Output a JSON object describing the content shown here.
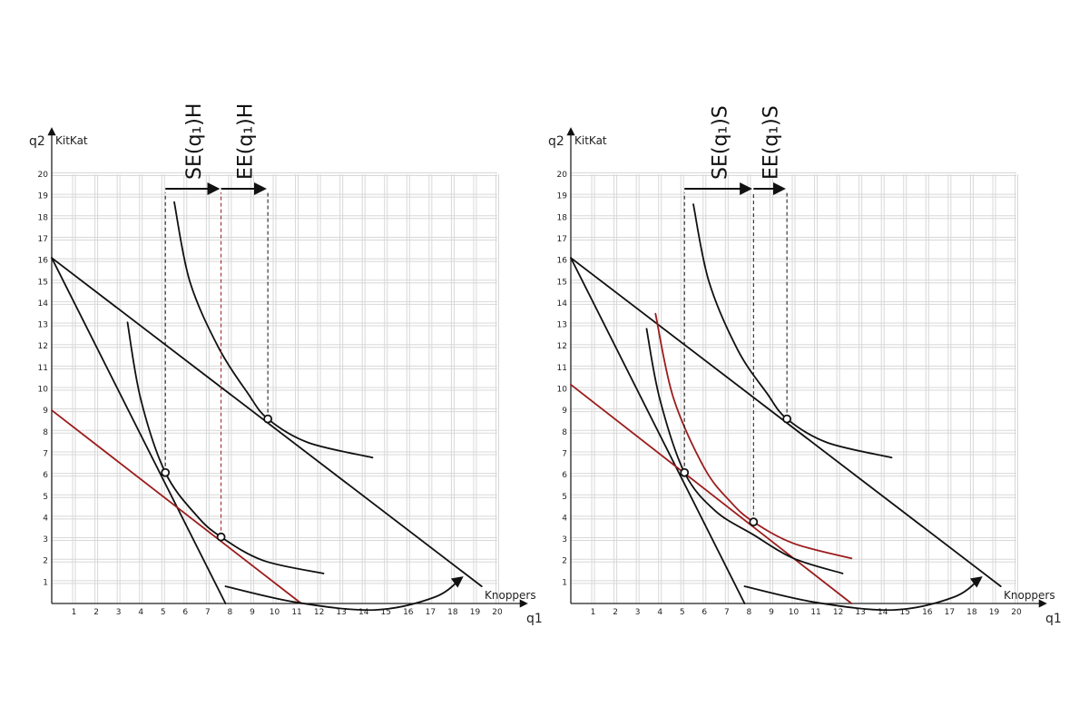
{
  "chart_data": [
    {
      "type": "line",
      "id": "left",
      "x_axis_symbol": "q1",
      "y_axis_symbol": "q2",
      "xlabel": "Knoppers",
      "ylabel": "KitKat",
      "xlim": [
        0,
        20
      ],
      "ylim": [
        0,
        20
      ],
      "x_ticks": [
        1,
        2,
        3,
        4,
        5,
        6,
        7,
        8,
        9,
        10,
        11,
        12,
        13,
        14,
        15,
        16,
        17,
        18,
        19,
        20
      ],
      "y_ticks": [
        1,
        2,
        3,
        4,
        5,
        6,
        7,
        8,
        9,
        10,
        11,
        12,
        13,
        14,
        15,
        16,
        17,
        18,
        19,
        20
      ],
      "grid": true,
      "colors": {
        "primary": "#111111",
        "secondary": "#9b1c1c",
        "grid": "#d8d8d8"
      },
      "effects": [
        {
          "label": "SE(q₁)H",
          "from_x": 5.1,
          "to_x": 7.6
        },
        {
          "label": "EE(q₁)H",
          "from_x": 7.6,
          "to_x": 9.7
        }
      ],
      "series": [
        {
          "role": "budget-line",
          "color": "#111111",
          "points": [
            [
              0,
              16.1
            ],
            [
              7.8,
              0
            ]
          ]
        },
        {
          "role": "budget-line",
          "color": "#111111",
          "points": [
            [
              0,
              16.1
            ],
            [
              19.3,
              0.8
            ]
          ]
        },
        {
          "role": "budget-line",
          "color": "#9b1c1c",
          "points": [
            [
              0,
              9
            ],
            [
              11.2,
              0
            ]
          ]
        },
        {
          "role": "indifference-curve",
          "color": "#111111",
          "points": [
            [
              3.4,
              13.1
            ],
            [
              4.0,
              9.5
            ],
            [
              5.1,
              6.1
            ],
            [
              6.5,
              4.1
            ],
            [
              7.6,
              3.1
            ],
            [
              9.5,
              2.0
            ],
            [
              12.2,
              1.4
            ]
          ]
        },
        {
          "role": "indifference-curve",
          "color": "#111111",
          "points": [
            [
              5.5,
              18.7
            ],
            [
              6.2,
              15.0
            ],
            [
              7.5,
              11.9
            ],
            [
              8.8,
              9.8
            ],
            [
              9.7,
              8.6
            ],
            [
              11.5,
              7.5
            ],
            [
              14.4,
              6.8
            ]
          ]
        },
        {
          "role": "income-effect-arrow",
          "color": "#111111",
          "points": [
            [
              7.8,
              0.8
            ],
            [
              11.0,
              0.05
            ],
            [
              14.5,
              -0.3
            ],
            [
              17.2,
              0.3
            ],
            [
              18.4,
              1.2
            ]
          ]
        }
      ],
      "points": [
        {
          "x": 5.1,
          "y": 6.1
        },
        {
          "x": 7.6,
          "y": 3.1
        },
        {
          "x": 9.7,
          "y": 8.6
        }
      ],
      "drop_lines": [
        {
          "x": 5.1,
          "y": 6.1,
          "color": "#111111"
        },
        {
          "x": 7.6,
          "y": 3.1,
          "color": "#9b1c1c"
        },
        {
          "x": 9.7,
          "y": 8.6,
          "color": "#111111"
        }
      ]
    },
    {
      "type": "line",
      "id": "right",
      "x_axis_symbol": "q1",
      "y_axis_symbol": "q2",
      "xlabel": "Knoppers",
      "ylabel": "KitKat",
      "xlim": [
        0,
        20
      ],
      "ylim": [
        0,
        20
      ],
      "x_ticks": [
        1,
        2,
        3,
        4,
        5,
        6,
        7,
        8,
        9,
        10,
        11,
        12,
        13,
        14,
        15,
        16,
        17,
        18,
        19,
        20
      ],
      "y_ticks": [
        1,
        2,
        3,
        4,
        5,
        6,
        7,
        8,
        9,
        10,
        11,
        12,
        13,
        14,
        15,
        16,
        17,
        18,
        19,
        20
      ],
      "grid": true,
      "colors": {
        "primary": "#111111",
        "secondary": "#9b1c1c",
        "grid": "#d8d8d8"
      },
      "effects": [
        {
          "label": "SE(q₁)S",
          "from_x": 5.1,
          "to_x": 8.2
        },
        {
          "label": "EE(q₁)S",
          "from_x": 8.2,
          "to_x": 9.7
        }
      ],
      "series": [
        {
          "role": "budget-line",
          "color": "#111111",
          "points": [
            [
              0,
              16.1
            ],
            [
              7.8,
              0
            ]
          ]
        },
        {
          "role": "budget-line",
          "color": "#111111",
          "points": [
            [
              0,
              16.1
            ],
            [
              19.3,
              0.8
            ]
          ]
        },
        {
          "role": "budget-line",
          "color": "#9b1c1c",
          "points": [
            [
              0,
              10.2
            ],
            [
              12.6,
              0
            ]
          ]
        },
        {
          "role": "indifference-curve",
          "color": "#111111",
          "points": [
            [
              3.4,
              12.8
            ],
            [
              4.0,
              9.5
            ],
            [
              5.1,
              6.1
            ],
            [
              6.5,
              4.3
            ],
            [
              8.2,
              3.2
            ],
            [
              10.0,
              2.1
            ],
            [
              12.2,
              1.4
            ]
          ]
        },
        {
          "role": "indifference-curve",
          "color": "#9b1c1c",
          "points": [
            [
              3.8,
              13.5
            ],
            [
              4.6,
              9.6
            ],
            [
              6.0,
              6.3
            ],
            [
              7.2,
              4.7
            ],
            [
              8.2,
              3.8
            ],
            [
              10.0,
              2.8
            ],
            [
              12.6,
              2.1
            ]
          ]
        },
        {
          "role": "indifference-curve",
          "color": "#111111",
          "points": [
            [
              5.5,
              18.6
            ],
            [
              6.2,
              15.0
            ],
            [
              7.5,
              11.8
            ],
            [
              8.8,
              9.8
            ],
            [
              9.7,
              8.6
            ],
            [
              11.5,
              7.5
            ],
            [
              14.4,
              6.8
            ]
          ]
        },
        {
          "role": "income-effect-arrow",
          "color": "#111111",
          "points": [
            [
              7.8,
              0.8
            ],
            [
              11.0,
              0.05
            ],
            [
              14.5,
              -0.3
            ],
            [
              17.2,
              0.3
            ],
            [
              18.4,
              1.2
            ]
          ]
        }
      ],
      "points": [
        {
          "x": 5.1,
          "y": 6.1
        },
        {
          "x": 8.2,
          "y": 3.8
        },
        {
          "x": 9.7,
          "y": 8.6
        }
      ],
      "drop_lines": [
        {
          "x": 5.1,
          "y": 6.1,
          "color": "#111111"
        },
        {
          "x": 8.2,
          "y": 3.8,
          "color": "#111111"
        },
        {
          "x": 9.7,
          "y": 8.6,
          "color": "#111111"
        }
      ]
    }
  ]
}
